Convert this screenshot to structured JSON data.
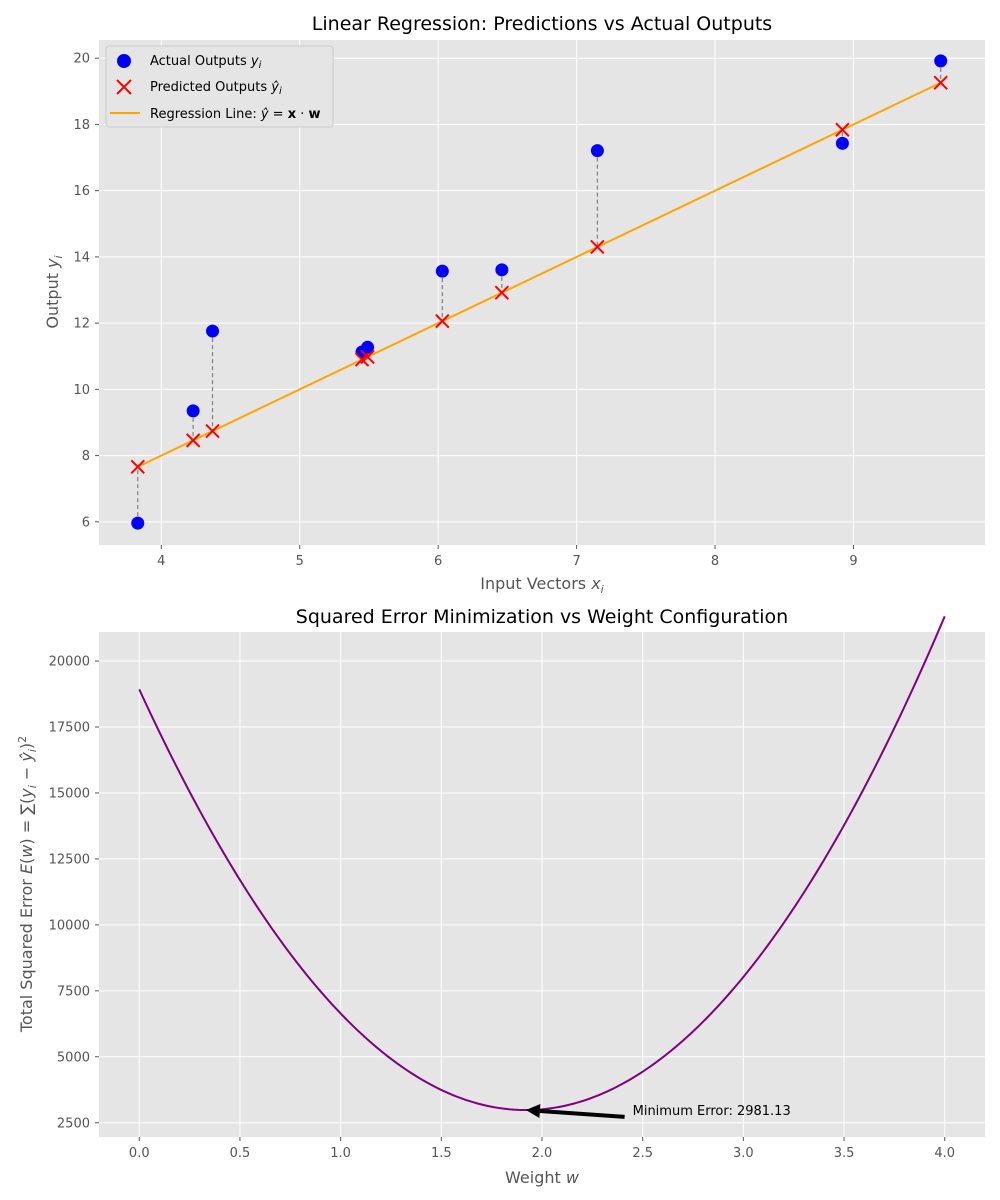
{
  "chart_data": [
    {
      "type": "scatter",
      "title": "Linear Regression: Predictions vs Actual Outputs",
      "xlabel": "Input Vectors x_i",
      "ylabel": "Output y_i",
      "xlim": [
        3.55,
        9.95
      ],
      "ylim": [
        5.3,
        20.55
      ],
      "xticks": [
        4,
        5,
        6,
        7,
        8,
        9
      ],
      "yticks": [
        6,
        8,
        10,
        12,
        14,
        16,
        18,
        20
      ],
      "grid": true,
      "legend_position": "upper-left",
      "colors": {
        "actual": "#0000ff",
        "predicted": "#ff0000",
        "line": "#ffa500",
        "residual": "#808080"
      },
      "series": [
        {
          "name": "Actual Outputs y_i",
          "type": "scatter",
          "x": [
            3.83,
            4.23,
            4.37,
            5.45,
            5.49,
            6.03,
            6.46,
            7.15,
            8.92,
            9.63
          ],
          "y": [
            5.96,
            9.35,
            11.76,
            11.13,
            11.27,
            13.57,
            13.61,
            17.21,
            17.43,
            19.92
          ]
        },
        {
          "name": "Predicted Outputs ŷ_i",
          "type": "scatter-x",
          "x": [
            3.83,
            4.23,
            4.37,
            5.45,
            5.49,
            6.03,
            6.46,
            7.15,
            8.92,
            9.63
          ],
          "y": [
            7.66,
            8.46,
            8.74,
            10.9,
            10.98,
            12.06,
            12.92,
            14.3,
            17.84,
            19.26
          ]
        },
        {
          "name": "Regression Line: ŷ = x · w",
          "type": "line",
          "x": [
            3.83,
            9.63
          ],
          "y": [
            7.66,
            19.26
          ]
        }
      ]
    },
    {
      "type": "line",
      "title": "Squared Error Minimization vs Weight Configuration",
      "xlabel": "Weight w",
      "ylabel": "Total Squared Error E(w) = ∑(y_i − ŷ_i)²",
      "xlim": [
        -0.2,
        4.2
      ],
      "ylim": [
        1960,
        21100
      ],
      "xticks": [
        0.0,
        0.5,
        1.0,
        1.5,
        2.0,
        2.5,
        3.0,
        3.5,
        4.0
      ],
      "xtick_labels": [
        "0.0",
        "0.5",
        "1.0",
        "1.5",
        "2.0",
        "2.5",
        "3.0",
        "3.5",
        "4.0"
      ],
      "yticks": [
        2500,
        5000,
        7500,
        10000,
        12500,
        15000,
        17500,
        20000
      ],
      "grid": true,
      "color": "#800080",
      "quadratic": {
        "a": 4325,
        "w_min": 1.92,
        "e_min": 2981.13,
        "w_from": 0.0,
        "w_to": 4.0
      },
      "annotation": {
        "text": "Minimum Error: 2981.13",
        "point": [
          1.92,
          2981.13
        ],
        "text_pos": [
          2.45,
          2950
        ]
      }
    }
  ]
}
